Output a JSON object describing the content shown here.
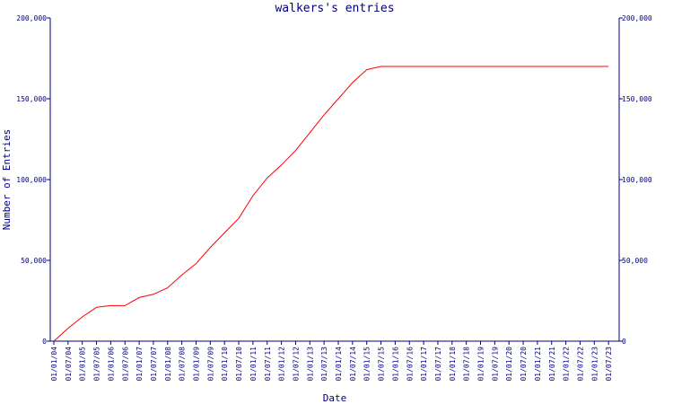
{
  "chart_data": {
    "type": "line",
    "title": "walkers's entries",
    "xlabel": "Date",
    "ylabel": "Number of Entries",
    "ylim": [
      0,
      200000
    ],
    "y_ticks": [
      0,
      50000,
      100000,
      150000,
      200000
    ],
    "y_tick_labels": [
      "0",
      "50,000",
      "100,000",
      "150,000",
      "200,000"
    ],
    "x_tick_labels": [
      "01/01/04",
      "01/07/04",
      "01/01/05",
      "01/07/05",
      "01/01/06",
      "01/07/06",
      "01/01/07",
      "01/07/07",
      "01/01/08",
      "01/07/08",
      "01/01/09",
      "01/07/09",
      "01/01/10",
      "01/07/10",
      "01/01/11",
      "01/07/11",
      "01/01/12",
      "01/07/12",
      "01/01/13",
      "01/07/13",
      "01/01/14",
      "01/07/14",
      "01/01/15",
      "01/07/15",
      "01/01/16",
      "01/07/16",
      "01/01/17",
      "01/07/17",
      "01/01/18",
      "01/07/18",
      "01/01/19",
      "01/07/19",
      "01/01/20",
      "01/07/20",
      "01/01/21",
      "01/07/21",
      "01/01/22",
      "01/07/22",
      "01/01/23",
      "01/07/23"
    ],
    "grid": false,
    "line_color": "#ff0000",
    "axis_color": "#000080",
    "series": [
      {
        "x": [
          "01/01/04",
          "01/07/04",
          "01/01/05",
          "01/07/05",
          "01/01/06",
          "01/07/06",
          "01/01/07",
          "01/07/07",
          "01/01/08",
          "01/07/08",
          "01/01/09",
          "01/07/09",
          "01/01/10",
          "01/07/10",
          "01/01/11",
          "01/07/11",
          "01/01/12",
          "01/07/12",
          "01/01/13",
          "01/07/13",
          "01/01/14",
          "01/07/14",
          "01/01/15",
          "01/07/15",
          "01/01/16",
          "01/07/16",
          "01/01/17",
          "01/07/17",
          "01/01/18",
          "01/07/18",
          "01/01/19",
          "01/07/19",
          "01/01/20",
          "01/07/20",
          "01/01/21",
          "01/07/21",
          "01/01/22",
          "01/07/22",
          "01/01/23",
          "01/07/23"
        ],
        "values": [
          0,
          8000,
          15000,
          21000,
          22000,
          22000,
          27000,
          29000,
          33000,
          41000,
          48000,
          58000,
          67000,
          76000,
          90000,
          101000,
          109000,
          118000,
          129000,
          140000,
          150000,
          160000,
          168000,
          170000,
          170000,
          170000,
          170000,
          170000,
          170000,
          170000,
          170000,
          170000,
          170000,
          170000,
          170000,
          170000,
          170000,
          170000,
          170000,
          170000
        ]
      }
    ]
  }
}
